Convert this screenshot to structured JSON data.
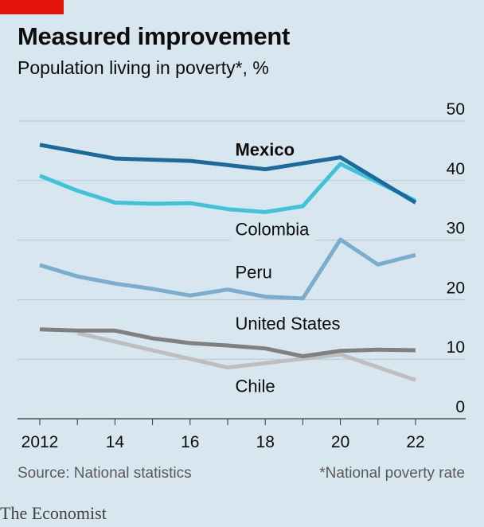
{
  "header": {
    "title": "Measured improvement",
    "subtitle": "Population living in poverty*, %"
  },
  "footer": {
    "source": "Source: National statistics",
    "note": "*National poverty rate"
  },
  "brand": "The Economist",
  "colors": {
    "accent_red": "#e3120b",
    "background": "#d8e7ef",
    "Mexico": "#1a6b9c",
    "Colombia": "#3ec3d8",
    "Peru": "#7aaecc",
    "United States": "#808080",
    "Chile": "#bebebe"
  },
  "chart_data": {
    "type": "line",
    "x": [
      2012,
      2013,
      2014,
      2015,
      2016,
      2017,
      2018,
      2019,
      2020,
      2021,
      2022
    ],
    "xticks": [
      2012,
      2014,
      2016,
      2018,
      2020,
      2022
    ],
    "xtick_labels": [
      "2012",
      "14",
      "16",
      "18",
      "20",
      "22"
    ],
    "ylim": [
      0,
      50
    ],
    "yticks": [
      0,
      10,
      20,
      30,
      40,
      50
    ],
    "ytick_labels": [
      "0",
      "10",
      "20",
      "30",
      "40",
      "50"
    ],
    "y_axis_side": "right",
    "grid": "horizontal",
    "series": [
      {
        "name": "Mexico",
        "bold": true,
        "x": [
          2012,
          2014,
          2016,
          2018,
          2020,
          2022
        ],
        "values": [
          46.0,
          43.7,
          43.3,
          41.9,
          43.9,
          36.3
        ]
      },
      {
        "name": "Colombia",
        "x": [
          2012,
          2013,
          2014,
          2015,
          2016,
          2017,
          2018,
          2019,
          2020,
          2021,
          2022
        ],
        "values": [
          40.8,
          38.3,
          36.3,
          36.1,
          36.2,
          35.2,
          34.7,
          35.7,
          42.8,
          39.7,
          36.6
        ]
      },
      {
        "name": "Peru",
        "x": [
          2012,
          2013,
          2014,
          2015,
          2016,
          2017,
          2018,
          2019,
          2020,
          2021,
          2022
        ],
        "values": [
          25.8,
          23.9,
          22.7,
          21.8,
          20.7,
          21.7,
          20.5,
          20.2,
          30.1,
          25.9,
          27.5
        ]
      },
      {
        "name": "United States",
        "x": [
          2012,
          2013,
          2014,
          2015,
          2016,
          2017,
          2018,
          2019,
          2020,
          2021,
          2022
        ],
        "values": [
          15.0,
          14.8,
          14.8,
          13.5,
          12.7,
          12.3,
          11.8,
          10.5,
          11.4,
          11.6,
          11.5
        ]
      },
      {
        "name": "Chile",
        "x": [
          2013,
          2017,
          2020,
          2022
        ],
        "values": [
          14.4,
          8.6,
          10.8,
          6.5
        ]
      }
    ]
  }
}
